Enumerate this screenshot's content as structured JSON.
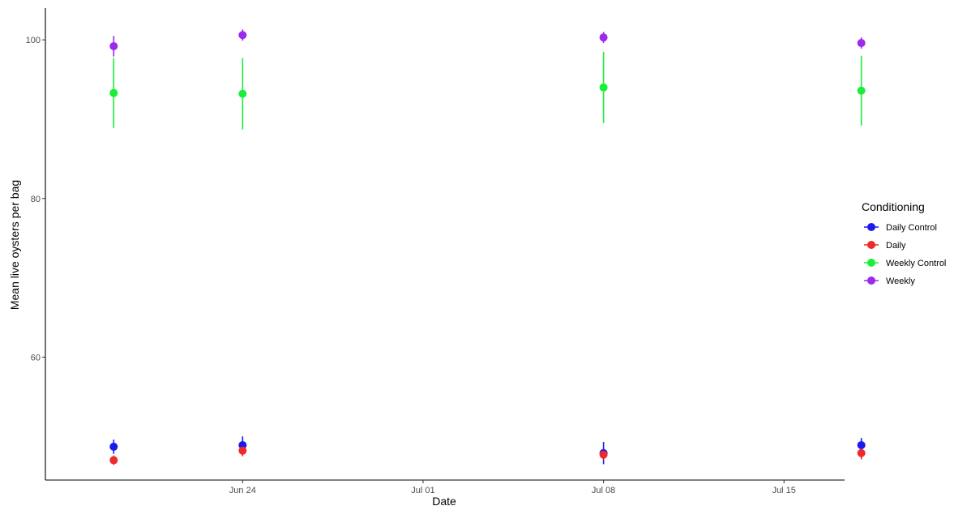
{
  "chart_data": {
    "type": "scatter",
    "title": "",
    "xlabel": "Date",
    "ylabel": "Mean live oysters per bag",
    "x_tick_labels": [
      "Jun 24",
      "Jul 01",
      "Jul 08",
      "Jul 15"
    ],
    "y_tick_labels": [
      "60",
      "80",
      "100"
    ],
    "y_ticks": [
      60,
      80,
      100
    ],
    "x_tick_days": [
      24,
      31,
      38,
      45
    ],
    "ylim": [
      44.5,
      104
    ],
    "x_day_range": [
      16.35,
      47.35
    ],
    "grid": false,
    "legend_position": "right",
    "legend_title": "Conditioning",
    "x_dates": [
      "2023-06-19",
      "2023-06-24",
      "2023-07-08",
      "2023-07-18"
    ],
    "x_day_values": [
      19,
      24,
      38,
      48
    ],
    "series": [
      {
        "name": "Daily Control",
        "color": "#1a1aee",
        "values": [
          48.7,
          48.9,
          47.9,
          48.9
        ],
        "lower": [
          47.8,
          47.8,
          46.5,
          48.0
        ],
        "upper": [
          49.6,
          50.0,
          49.3,
          49.8
        ]
      },
      {
        "name": "Daily",
        "color": "#ee2a2a",
        "values": [
          47.0,
          48.2,
          47.7,
          47.9
        ],
        "lower": [
          46.4,
          47.5,
          47.1,
          47.1
        ],
        "upper": [
          47.6,
          48.9,
          48.3,
          48.6
        ]
      },
      {
        "name": "Weekly Control",
        "color": "#1aee3a",
        "values": [
          93.3,
          93.2,
          94.0,
          93.6
        ],
        "lower": [
          88.9,
          88.7,
          89.5,
          89.2
        ],
        "upper": [
          97.7,
          97.7,
          98.5,
          98.0
        ]
      },
      {
        "name": "Weekly",
        "color": "#9a2aee",
        "values": [
          99.2,
          100.6,
          100.3,
          99.6
        ],
        "lower": [
          97.9,
          99.9,
          99.6,
          98.9
        ],
        "upper": [
          100.5,
          101.3,
          101.0,
          100.3
        ]
      }
    ]
  }
}
